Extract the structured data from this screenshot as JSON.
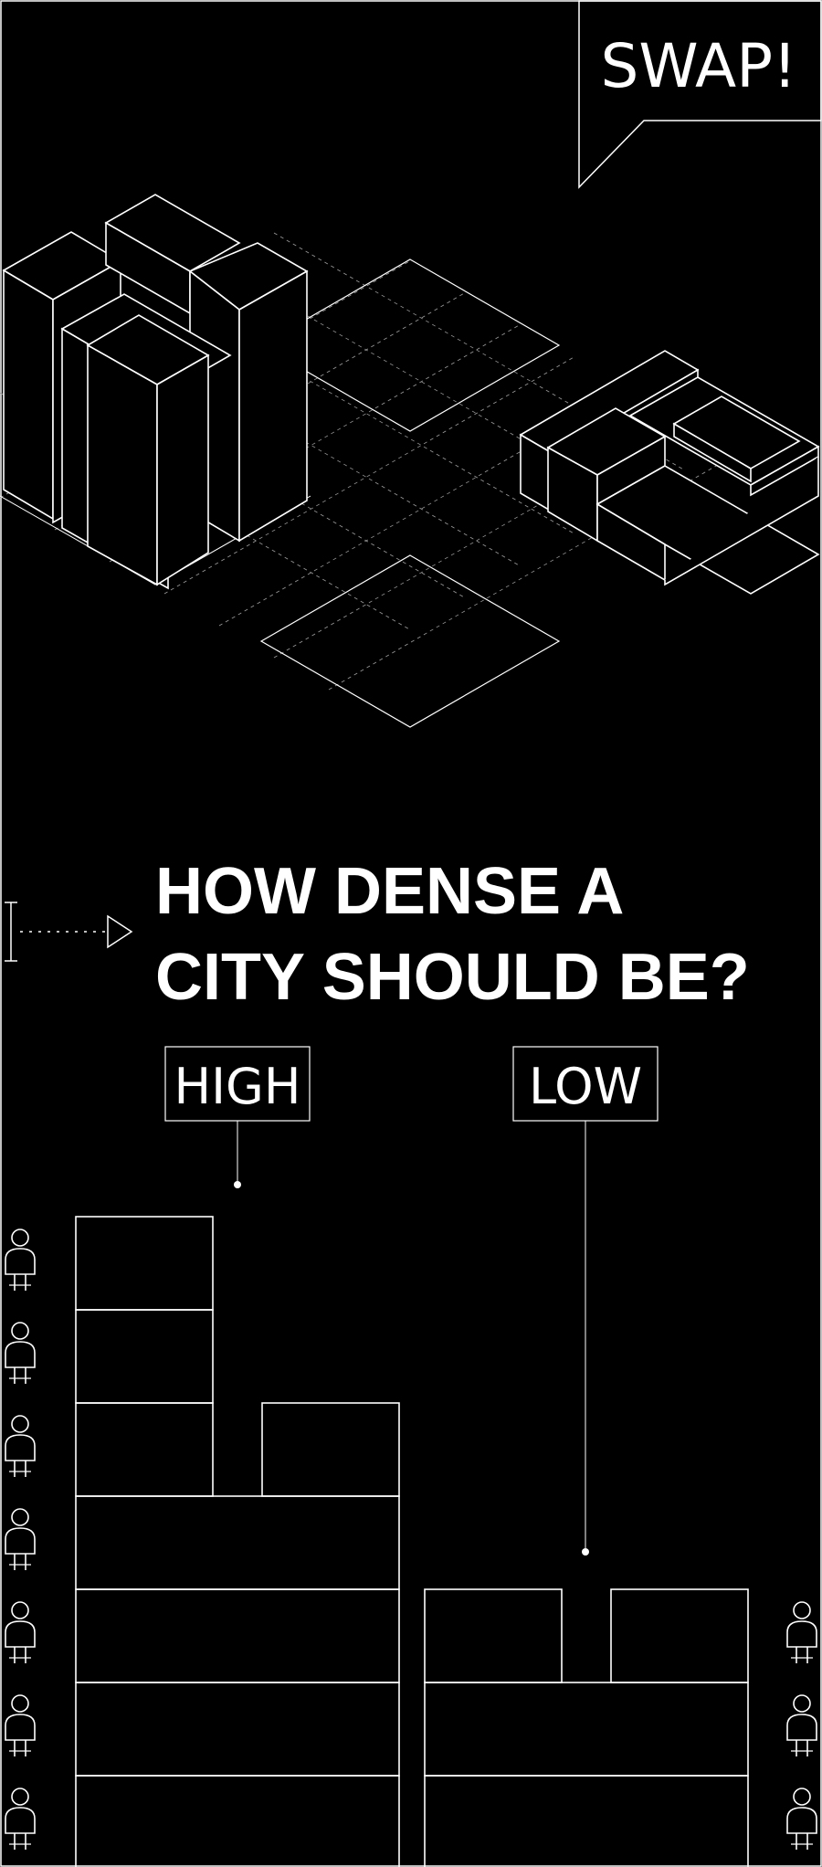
{
  "badge": {
    "text": "SWAP!"
  },
  "headline": {
    "line1": "HOW DENSE A",
    "line2": "CITY SHOULD BE?"
  },
  "labels": {
    "high": "HIGH",
    "low": "LOW"
  },
  "colors": {
    "background": "#000000",
    "line": "#ffffff",
    "grid": "#9a9a9a"
  },
  "icons": {
    "swap_bubble": "speech-bubble-icon",
    "arrow": "dotted-arrow-icon",
    "person": "person-icon"
  }
}
